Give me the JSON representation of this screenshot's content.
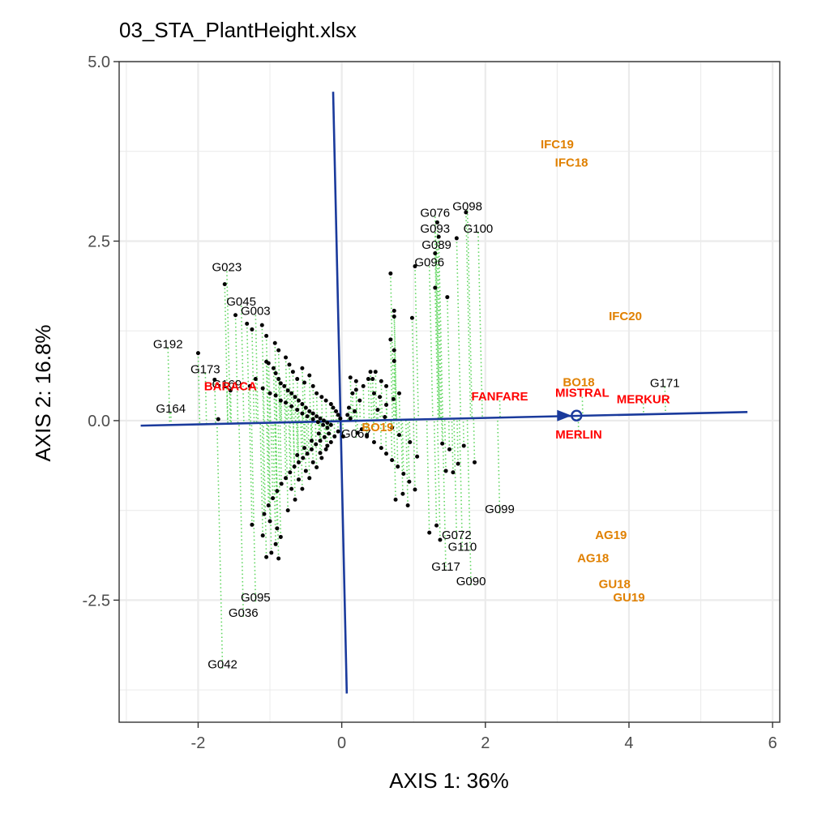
{
  "chart_data": {
    "type": "scatter",
    "title": "03_STA_PlantHeight.xlsx",
    "xlabel": "AXIS 1: 36%",
    "ylabel": "AXIS 2: 16.8%",
    "xlim": [
      -3.1,
      6.1
    ],
    "ylim": [
      -4.2,
      5.0
    ],
    "x_ticks": [
      -2,
      0,
      2,
      4,
      6
    ],
    "x_tick_labels": [
      "-2",
      "0",
      "2",
      "4",
      "6"
    ],
    "y_ticks": [
      5.0,
      2.5,
      0.0,
      -2.5
    ],
    "y_tick_labels": [
      "5.0",
      "2.5",
      "0.0",
      "-2.5"
    ],
    "grid": true,
    "colors": {
      "genotype_point": "#000000",
      "genotype_label": "#000000",
      "check_label": "#ff0000",
      "environment_label": "#e08000",
      "axis_line": "#1a3a9c",
      "projection": "#5ed65e",
      "panel_border": "#333333",
      "grid": "#ebebeb"
    },
    "average_environment_axis": {
      "start": [
        -2.8,
        -0.07
      ],
      "end": [
        5.65,
        0.12
      ],
      "marker": [
        3.27,
        0.07
      ]
    },
    "perpendicular_axis": {
      "start": [
        -0.12,
        4.58
      ],
      "end": [
        0.07,
        -3.8
      ]
    },
    "environments": [
      {
        "label": "IFC19",
        "x": 3.0,
        "y": 3.79
      },
      {
        "label": "IFC18",
        "x": 3.2,
        "y": 3.54
      },
      {
        "label": "IFC20",
        "x": 3.95,
        "y": 1.4
      },
      {
        "label": "BO18",
        "x": 3.3,
        "y": 0.48
      },
      {
        "label": "BO19",
        "x": 0.5,
        "y": -0.15
      },
      {
        "label": "AG19",
        "x": 3.75,
        "y": -1.65
      },
      {
        "label": "AG18",
        "x": 3.5,
        "y": -1.97
      },
      {
        "label": "GU18",
        "x": 3.8,
        "y": -2.33
      },
      {
        "label": "GU19",
        "x": 4.0,
        "y": -2.52
      }
    ],
    "checks": [
      {
        "label": "BARACA",
        "x": -1.55,
        "y": 0.42
      },
      {
        "label": "FANFARE",
        "x": 2.2,
        "y": 0.28
      },
      {
        "label": "MISTRAL",
        "x": 3.35,
        "y": 0.33
      },
      {
        "label": "MERKUR",
        "x": 4.2,
        "y": 0.24
      },
      {
        "label": "MERLIN",
        "x": 3.3,
        "y": -0.25
      }
    ],
    "labeled_genotypes": [
      {
        "label": "G098",
        "x": 1.75,
        "y": 2.93
      },
      {
        "label": "G076",
        "x": 1.3,
        "y": 2.84
      },
      {
        "label": "G093",
        "x": 1.3,
        "y": 2.62
      },
      {
        "label": "G100",
        "x": 1.9,
        "y": 2.62
      },
      {
        "label": "G089",
        "x": 1.32,
        "y": 2.39
      },
      {
        "label": "G096",
        "x": 1.22,
        "y": 2.15
      },
      {
        "label": "G023",
        "x": -1.6,
        "y": 2.08
      },
      {
        "label": "G045",
        "x": -1.4,
        "y": 1.6
      },
      {
        "label": "G003",
        "x": -1.2,
        "y": 1.47
      },
      {
        "label": "G192",
        "x": -2.42,
        "y": 1.01
      },
      {
        "label": "G173",
        "x": -1.9,
        "y": 0.66
      },
      {
        "label": "G169",
        "x": -1.6,
        "y": 0.45
      },
      {
        "label": "G171",
        "x": 4.5,
        "y": 0.47
      },
      {
        "label": "G164",
        "x": -2.38,
        "y": 0.11
      },
      {
        "label": "G067",
        "x": 0.2,
        "y": -0.24
      },
      {
        "label": "G099",
        "x": 2.2,
        "y": -1.29
      },
      {
        "label": "G072",
        "x": 1.6,
        "y": -1.65
      },
      {
        "label": "G110",
        "x": 1.68,
        "y": -1.81
      },
      {
        "label": "G117",
        "x": 1.45,
        "y": -2.09
      },
      {
        "label": "G090",
        "x": 1.8,
        "y": -2.29
      },
      {
        "label": "G095",
        "x": -1.2,
        "y": -2.52
      },
      {
        "label": "G036",
        "x": -1.37,
        "y": -2.73
      },
      {
        "label": "G042",
        "x": -1.66,
        "y": -3.45
      }
    ],
    "genotype_points": [
      [
        1.73,
        2.9
      ],
      [
        1.33,
        2.76
      ],
      [
        1.35,
        2.56
      ],
      [
        1.6,
        2.54
      ],
      [
        1.3,
        2.33
      ],
      [
        1.02,
        2.15
      ],
      [
        0.68,
        2.05
      ],
      [
        -1.63,
        1.9
      ],
      [
        -1.48,
        1.47
      ],
      [
        -1.32,
        1.35
      ],
      [
        -1.11,
        1.33
      ],
      [
        -2.0,
        0.94
      ],
      [
        -1.77,
        0.57
      ],
      [
        -1.55,
        0.42
      ],
      [
        -1.72,
        0.02
      ],
      [
        0.02,
        -0.22
      ],
      [
        1.3,
        1.85
      ],
      [
        1.47,
        1.72
      ],
      [
        0.73,
        1.53
      ],
      [
        0.73,
        1.45
      ],
      [
        0.98,
        1.43
      ],
      [
        0.68,
        1.13
      ],
      [
        0.73,
        0.98
      ],
      [
        0.73,
        0.83
      ],
      [
        0.4,
        0.68
      ],
      [
        0.47,
        0.68
      ],
      [
        0.37,
        0.58
      ],
      [
        0.43,
        0.58
      ],
      [
        0.3,
        0.48
      ],
      [
        0.2,
        0.43
      ],
      [
        0.15,
        0.38
      ],
      [
        0.45,
        0.38
      ],
      [
        0.53,
        0.33
      ],
      [
        0.25,
        0.28
      ],
      [
        0.1,
        0.18
      ],
      [
        0.18,
        0.13
      ],
      [
        0.08,
        0.08
      ],
      [
        0.12,
        0.03
      ],
      [
        0.28,
        -0.12
      ],
      [
        0.35,
        -0.2
      ],
      [
        0.22,
        -0.17
      ],
      [
        -1.25,
        1.27
      ],
      [
        -1.05,
        1.18
      ],
      [
        -0.93,
        1.08
      ],
      [
        -0.88,
        0.98
      ],
      [
        -0.78,
        0.88
      ],
      [
        -0.73,
        0.78
      ],
      [
        -0.68,
        0.68
      ],
      [
        -0.55,
        0.73
      ],
      [
        -0.45,
        0.63
      ],
      [
        -0.62,
        0.58
      ],
      [
        -0.52,
        0.53
      ],
      [
        -0.4,
        0.48
      ],
      [
        -0.35,
        0.38
      ],
      [
        -0.28,
        0.33
      ],
      [
        -0.22,
        0.28
      ],
      [
        -0.15,
        0.23
      ],
      [
        -0.12,
        0.18
      ],
      [
        -0.08,
        0.13
      ],
      [
        -0.05,
        0.08
      ],
      [
        -0.02,
        0.03
      ],
      [
        -1.05,
        0.82
      ],
      [
        -1.02,
        0.8
      ],
      [
        -0.95,
        0.73
      ],
      [
        -0.92,
        0.66
      ],
      [
        -0.88,
        0.58
      ],
      [
        -0.85,
        0.52
      ],
      [
        -0.8,
        0.48
      ],
      [
        -0.75,
        0.42
      ],
      [
        -0.7,
        0.38
      ],
      [
        -0.65,
        0.33
      ],
      [
        -0.6,
        0.28
      ],
      [
        -0.55,
        0.23
      ],
      [
        -0.5,
        0.18
      ],
      [
        -0.45,
        0.13
      ],
      [
        -0.4,
        0.1
      ],
      [
        -0.35,
        0.06
      ],
      [
        -0.3,
        0.03
      ],
      [
        -0.25,
        0.0
      ],
      [
        -0.2,
        -0.03
      ],
      [
        -0.15,
        -0.06
      ],
      [
        -1.2,
        0.58
      ],
      [
        -1.28,
        0.48
      ],
      [
        -1.1,
        0.45
      ],
      [
        -1.0,
        0.38
      ],
      [
        -0.92,
        0.35
      ],
      [
        -0.85,
        0.28
      ],
      [
        -0.78,
        0.25
      ],
      [
        -0.7,
        0.2
      ],
      [
        -0.62,
        0.15
      ],
      [
        -0.55,
        0.1
      ],
      [
        -0.48,
        0.06
      ],
      [
        -0.4,
        0.02
      ],
      [
        -0.33,
        -0.02
      ],
      [
        -0.26,
        -0.06
      ],
      [
        -0.2,
        -0.1
      ],
      [
        -0.18,
        -0.18
      ],
      [
        -0.24,
        -0.23
      ],
      [
        -0.3,
        -0.28
      ],
      [
        -0.36,
        -0.33
      ],
      [
        -0.42,
        -0.4
      ],
      [
        -0.48,
        -0.46
      ],
      [
        -0.54,
        -0.52
      ],
      [
        -0.6,
        -0.58
      ],
      [
        -0.66,
        -0.64
      ],
      [
        -0.72,
        -0.72
      ],
      [
        -0.78,
        -0.8
      ],
      [
        -0.84,
        -0.88
      ],
      [
        -0.9,
        -0.98
      ],
      [
        -0.96,
        -1.08
      ],
      [
        -1.02,
        -1.18
      ],
      [
        -1.08,
        -1.3
      ],
      [
        -1.0,
        -1.4
      ],
      [
        -0.9,
        -1.5
      ],
      [
        -0.85,
        -1.62
      ],
      [
        -0.92,
        -1.72
      ],
      [
        -0.98,
        -1.84
      ],
      [
        -1.05,
        -1.9
      ],
      [
        -0.88,
        -1.92
      ],
      [
        -1.1,
        -1.6
      ],
      [
        -1.25,
        -1.45
      ],
      [
        -0.75,
        -1.25
      ],
      [
        -0.65,
        -1.1
      ],
      [
        -0.55,
        -0.95
      ],
      [
        -0.45,
        -0.8
      ],
      [
        -0.35,
        -0.65
      ],
      [
        -0.28,
        -0.52
      ],
      [
        -0.22,
        -0.4
      ],
      [
        -0.15,
        -0.3
      ],
      [
        -0.1,
        -0.22
      ],
      [
        -0.05,
        -0.15
      ],
      [
        -0.62,
        -0.48
      ],
      [
        -0.52,
        -0.38
      ],
      [
        -0.42,
        -0.28
      ],
      [
        -0.32,
        -0.18
      ],
      [
        -0.7,
        -0.95
      ],
      [
        -0.6,
        -0.82
      ],
      [
        -0.5,
        -0.7
      ],
      [
        -0.4,
        -0.58
      ],
      [
        -0.3,
        -0.45
      ],
      [
        -0.2,
        -0.35
      ],
      [
        0.35,
        -0.22
      ],
      [
        0.45,
        -0.3
      ],
      [
        0.55,
        -0.38
      ],
      [
        0.62,
        -0.46
      ],
      [
        0.7,
        -0.55
      ],
      [
        0.78,
        -0.64
      ],
      [
        0.86,
        -0.74
      ],
      [
        0.94,
        -0.85
      ],
      [
        1.02,
        -0.96
      ],
      [
        0.85,
        -1.02
      ],
      [
        0.75,
        -1.1
      ],
      [
        0.92,
        -1.18
      ],
      [
        1.22,
        -1.56
      ],
      [
        1.32,
        -1.46
      ],
      [
        1.37,
        -1.66
      ],
      [
        1.45,
        -0.7
      ],
      [
        1.55,
        -0.72
      ],
      [
        1.5,
        -0.4
      ],
      [
        1.62,
        -0.6
      ],
      [
        1.85,
        -0.58
      ],
      [
        1.7,
        -0.35
      ],
      [
        1.4,
        -0.32
      ],
      [
        1.05,
        -0.5
      ],
      [
        0.95,
        -0.3
      ],
      [
        0.8,
        -0.2
      ],
      [
        0.7,
        -0.1
      ],
      [
        0.6,
        0.05
      ],
      [
        0.5,
        0.15
      ],
      [
        0.62,
        0.22
      ],
      [
        0.72,
        0.3
      ],
      [
        0.8,
        0.38
      ],
      [
        0.62,
        0.48
      ],
      [
        0.55,
        0.55
      ],
      [
        0.2,
        0.55
      ],
      [
        0.12,
        0.6
      ]
    ]
  }
}
